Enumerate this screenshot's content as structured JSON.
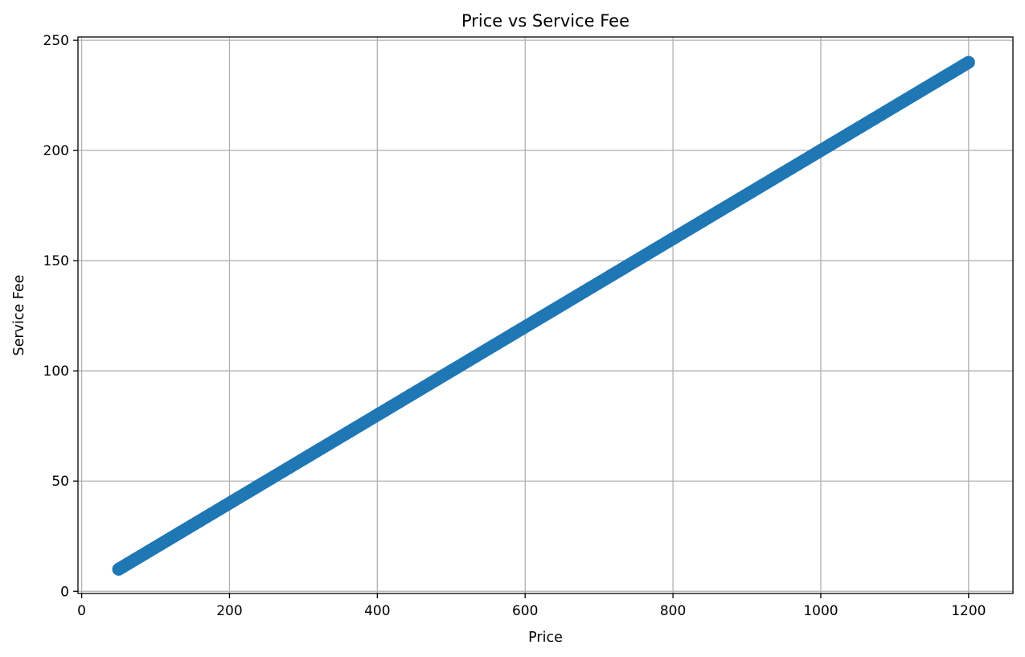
{
  "chart_data": {
    "type": "scatter",
    "title": "Price vs Service Fee",
    "xlabel": "Price",
    "ylabel": "Service Fee",
    "xlim": [
      -5,
      1260
    ],
    "ylim": [
      -1,
      251.5
    ],
    "xticks": [
      0,
      200,
      400,
      600,
      800,
      1000,
      1200
    ],
    "yticks": [
      0,
      50,
      100,
      150,
      200,
      250
    ],
    "grid": true,
    "legend": "none",
    "series": [
      {
        "color": "#1f77b4",
        "relationship": "service_fee = 0.2 * price",
        "x_range": [
          50,
          1200
        ],
        "x": [
          50,
          100,
          150,
          200,
          250,
          300,
          350,
          400,
          450,
          500,
          550,
          600,
          650,
          700,
          750,
          800,
          850,
          900,
          950,
          1000,
          1050,
          1100,
          1150,
          1200
        ],
        "y": [
          10,
          20,
          30,
          40,
          50,
          60,
          70,
          80,
          90,
          100,
          110,
          120,
          130,
          140,
          150,
          160,
          170,
          180,
          190,
          200,
          210,
          220,
          230,
          240
        ]
      }
    ]
  }
}
